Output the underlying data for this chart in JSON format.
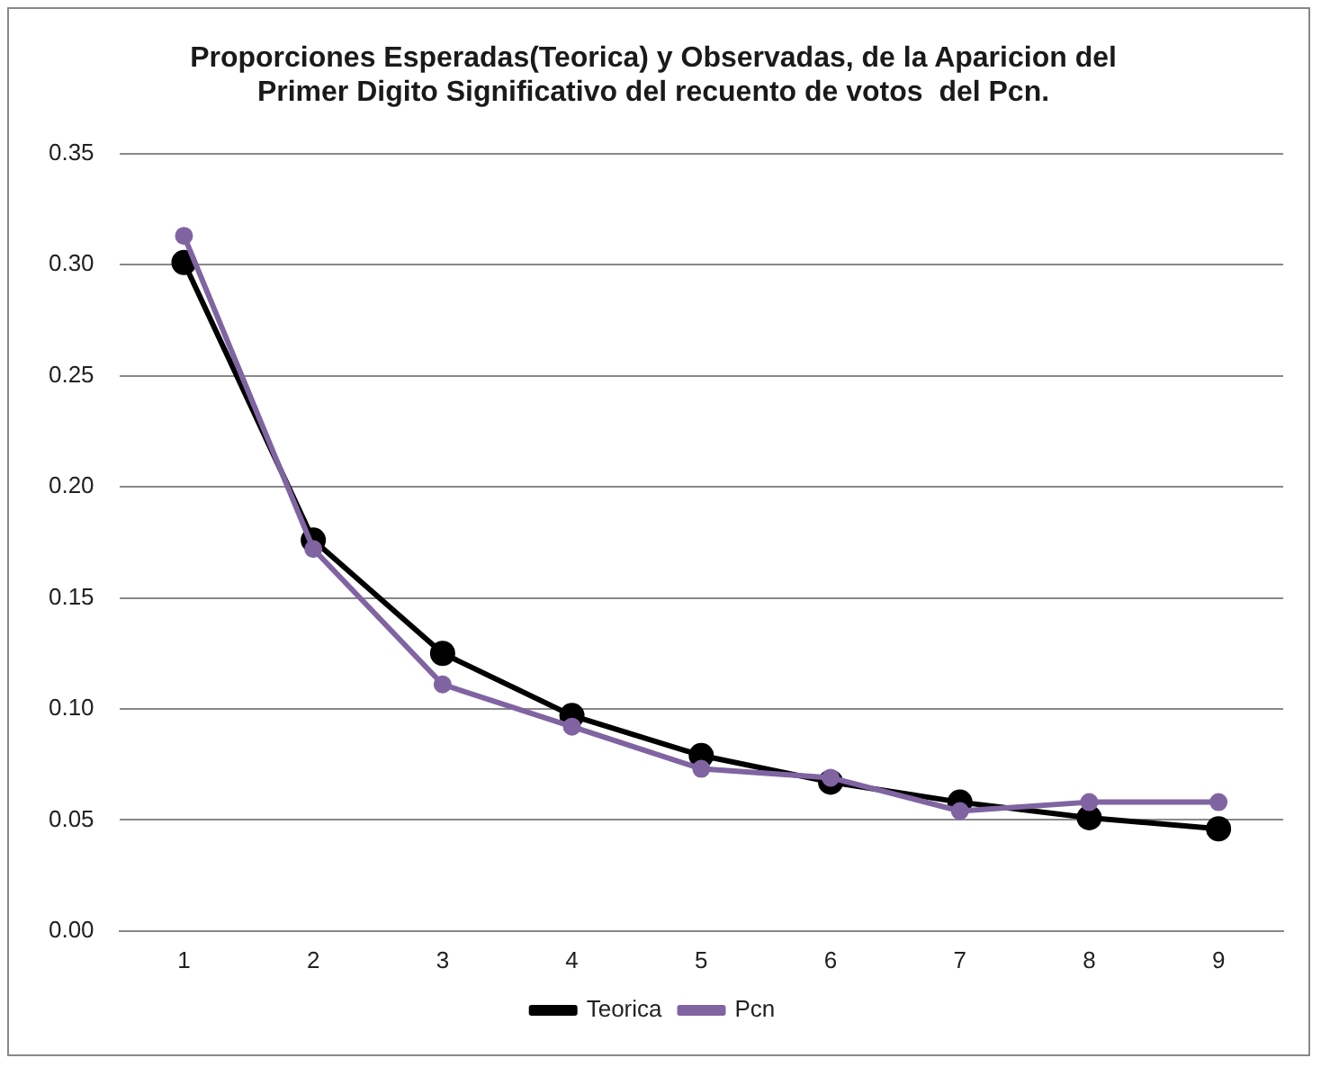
{
  "chart_data": {
    "type": "line",
    "title": "Proporciones Esperadas(Teorica) y Observadas, de la Aparicion del\nPrimer Digito Significativo del recuento de votos  del Pcn.",
    "categories": [
      "1",
      "2",
      "3",
      "4",
      "5",
      "6",
      "7",
      "8",
      "9"
    ],
    "series": [
      {
        "name": "Teorica",
        "color": "#000000",
        "values": [
          0.301,
          0.176,
          0.125,
          0.097,
          0.079,
          0.067,
          0.058,
          0.051,
          0.046
        ]
      },
      {
        "name": "Pcn",
        "color": "#8064a2",
        "values": [
          0.313,
          0.172,
          0.111,
          0.092,
          0.073,
          0.069,
          0.054,
          0.058,
          0.058
        ]
      }
    ],
    "ylim": [
      0,
      0.35
    ],
    "yticks": [
      {
        "value": 0,
        "label": "0.00"
      },
      {
        "value": 0.05,
        "label": "0.05"
      },
      {
        "value": 0.1,
        "label": "0.10"
      },
      {
        "value": 0.15,
        "label": "0.15"
      },
      {
        "value": 0.2,
        "label": "0.20"
      },
      {
        "value": 0.25,
        "label": "0.25"
      },
      {
        "value": 0.3,
        "label": "0.30"
      },
      {
        "value": 0.35,
        "label": "0.35"
      }
    ],
    "grid": "y",
    "legend": "bottom",
    "marker": "circle",
    "line_style": "solid"
  }
}
